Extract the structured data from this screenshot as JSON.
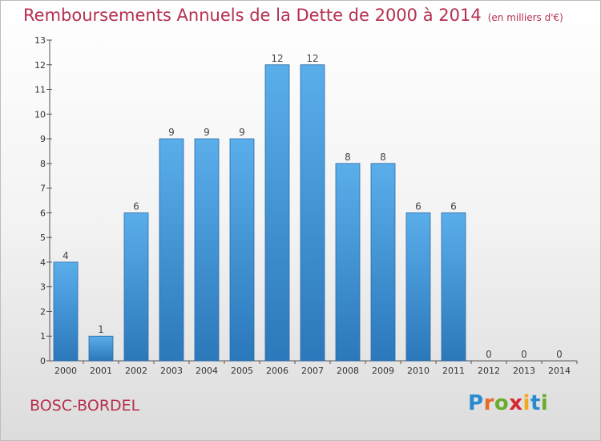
{
  "title": "Remboursements Annuels de la Dette de 2000 à 2014",
  "unit": "(en milliers d'€)",
  "city": "BOSC-BORDEL",
  "brand": {
    "letters": [
      "P",
      "r",
      "o",
      "x",
      "i",
      "t",
      "i"
    ],
    "colors": [
      "#2a8ad0",
      "#e8692a",
      "#6aac2e",
      "#d9262e",
      "#f2a91f",
      "#2a8ad0",
      "#6aac2e"
    ]
  },
  "colors": {
    "bar_top": "#5aaeea",
    "bar_bottom": "#2b78bb",
    "title": "#b5304f"
  },
  "chart_data": {
    "type": "bar",
    "categories": [
      "2000",
      "2001",
      "2002",
      "2003",
      "2004",
      "2005",
      "2006",
      "2007",
      "2008",
      "2009",
      "2010",
      "2011",
      "2012",
      "2013",
      "2014"
    ],
    "values": [
      4,
      1,
      6,
      9,
      9,
      9,
      12,
      12,
      8,
      8,
      6,
      6,
      0,
      0,
      0
    ],
    "data_labels": [
      "4",
      "1",
      "6",
      "9",
      "9",
      "9",
      "12",
      "12",
      "8",
      "8",
      "6",
      "6",
      "0",
      "0",
      "0"
    ],
    "y_ticks": [
      "0",
      "1",
      "2",
      "3",
      "4",
      "5",
      "6",
      "7",
      "8",
      "9",
      "10",
      "11",
      "12",
      "13"
    ],
    "ylim": [
      0,
      13
    ],
    "grid": false,
    "xlabel": "",
    "ylabel": ""
  }
}
